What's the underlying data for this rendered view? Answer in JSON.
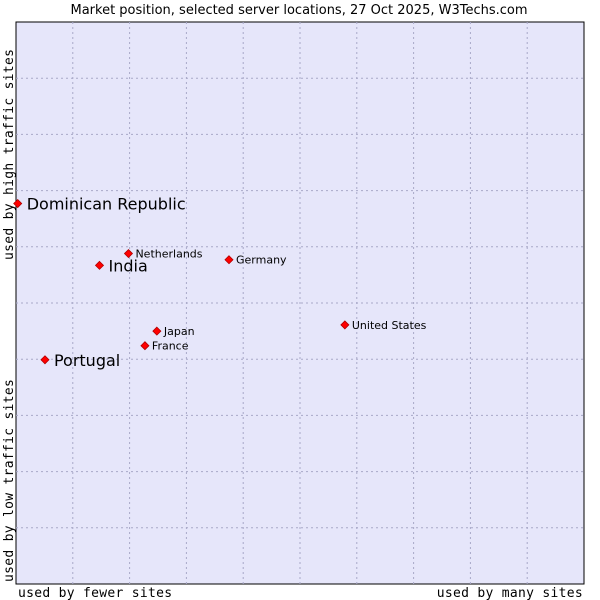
{
  "chart_data": {
    "type": "scatter",
    "title": "Market position, selected server locations, 27 Oct 2025, W3Techs.com",
    "xlabel_left": "used by fewer sites",
    "xlabel_right": "used by many sites",
    "ylabel_top": "used by high traffic sites",
    "ylabel_bottom": "used by low traffic sites",
    "xlim": [
      0,
      100
    ],
    "ylim": [
      0,
      100
    ],
    "grid": true,
    "colors": {
      "plot_bg": "#e6e6fa",
      "grid": "#a8a8c8",
      "marker": "#ff0000",
      "marker_edge": "#b00000"
    },
    "points": [
      {
        "name": "Dominican Republic",
        "x": 0.3,
        "y": 67.7,
        "emphasis": true
      },
      {
        "name": "Netherlands",
        "x": 19.8,
        "y": 58.8,
        "emphasis": false
      },
      {
        "name": "Germany",
        "x": 37.5,
        "y": 57.7,
        "emphasis": false
      },
      {
        "name": "India",
        "x": 14.7,
        "y": 56.7,
        "emphasis": true
      },
      {
        "name": "United States",
        "x": 57.9,
        "y": 46.1,
        "emphasis": false
      },
      {
        "name": "Japan",
        "x": 24.8,
        "y": 45.0,
        "emphasis": false
      },
      {
        "name": "France",
        "x": 22.7,
        "y": 42.4,
        "emphasis": false
      },
      {
        "name": "Portugal",
        "x": 5.1,
        "y": 39.9,
        "emphasis": true
      }
    ]
  }
}
